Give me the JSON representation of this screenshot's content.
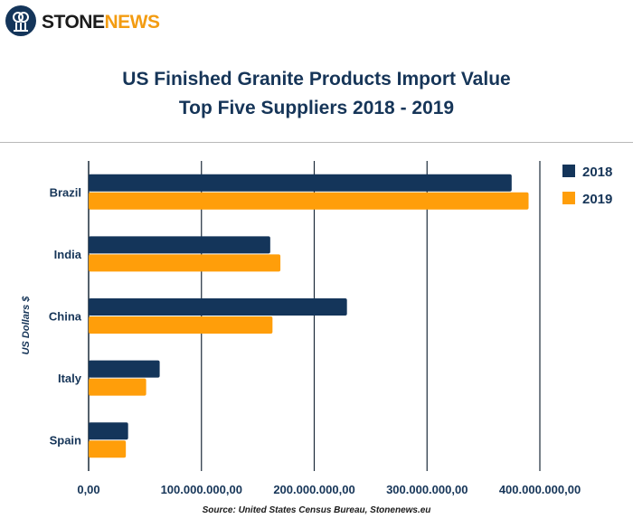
{
  "brand": {
    "name_part1": "STONE",
    "name_part2": "NEWS"
  },
  "colors": {
    "series_2018": "#14355a",
    "series_2019": "#ff9e0a",
    "title": "#163558",
    "brand_accent": "#f39c12"
  },
  "chart_data": {
    "type": "bar",
    "orientation": "horizontal",
    "title": "US Finished Granite Products Import Value",
    "subtitle": "Top Five Suppliers 2018 - 2019",
    "xlabel": "",
    "ylabel": "US Dollars $",
    "categories": [
      "Brazil",
      "India",
      "China",
      "Italy",
      "Spain"
    ],
    "series": [
      {
        "name": "2018",
        "values": [
          375000000,
          161000000,
          229000000,
          63000000,
          35000000
        ]
      },
      {
        "name": "2019",
        "values": [
          390000000,
          170000000,
          163000000,
          51000000,
          33000000
        ]
      }
    ],
    "xlim": [
      0,
      400000000
    ],
    "xticks": [
      0,
      100000000,
      200000000,
      300000000,
      400000000
    ],
    "xtick_labels": [
      "0,00",
      "100.000.000,00",
      "200.000.000,00",
      "300.000.000,00",
      "400.000.000,00"
    ],
    "grid": true,
    "legend_position": "top-right",
    "source": "Source: United States Census Bureau, Stonenews.eu"
  }
}
